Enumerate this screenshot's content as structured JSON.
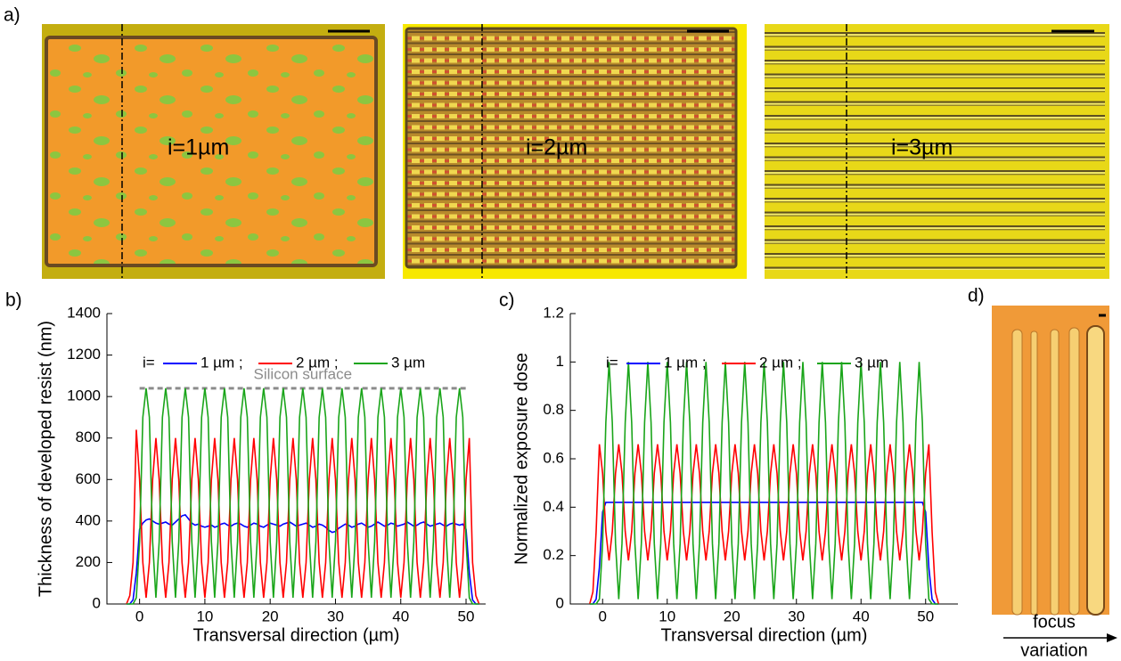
{
  "panel_labels": [
    "a)",
    "b)",
    "c)",
    "d)"
  ],
  "images": [
    {
      "label": "i=1µm"
    },
    {
      "label": "i=2µm"
    },
    {
      "label": "i=3µm"
    }
  ],
  "focus_label": [
    "focus",
    "variation"
  ],
  "chart_data": [
    {
      "type": "line",
      "xlabel": "Transversal direction (µm)",
      "ylabel": "Thickness of developed resist (nm)",
      "legend_title": "i=",
      "xlim": [
        -5,
        53
      ],
      "ylim": [
        0,
        1400
      ],
      "xticks": [
        0,
        10,
        20,
        30,
        40,
        50
      ],
      "yticks": [
        0,
        200,
        400,
        600,
        800,
        1000,
        1200,
        1400
      ],
      "annotation": {
        "text": "Silicon surface",
        "y": 1040,
        "x": [
          0,
          50
        ],
        "color": "#8c8c8c"
      },
      "x": [
        -2,
        -1.5,
        -1,
        -0.5,
        0,
        0.5,
        1,
        1.5,
        2,
        2.5,
        3,
        3.5,
        4,
        4.5,
        5,
        5.5,
        6,
        6.5,
        7,
        7.5,
        8,
        8.5,
        9,
        9.5,
        10,
        10.5,
        11,
        11.5,
        12,
        12.5,
        13,
        13.5,
        14,
        14.5,
        15,
        15.5,
        16,
        16.5,
        17,
        17.5,
        18,
        18.5,
        19,
        19.5,
        20,
        20.5,
        21,
        21.5,
        22,
        22.5,
        23,
        23.5,
        24,
        24.5,
        25,
        25.5,
        26,
        26.5,
        27,
        27.5,
        28,
        28.5,
        29,
        29.5,
        30,
        30.5,
        31,
        31.5,
        32,
        32.5,
        33,
        33.5,
        34,
        34.5,
        35,
        35.5,
        36,
        36.5,
        37,
        37.5,
        38,
        38.5,
        39,
        39.5,
        40,
        40.5,
        41,
        41.5,
        42,
        42.5,
        43,
        43.5,
        44,
        44.5,
        45,
        45.5,
        46,
        46.5,
        47,
        47.5,
        48,
        48.5,
        49,
        49.5,
        50,
        50.5,
        51,
        51.5,
        52
      ],
      "series": [
        {
          "name": "1 µm ;",
          "color": "#0000ff",
          "values": [
            0,
            0,
            20,
            150,
            360,
            390,
            405,
            410,
            400,
            390,
            385,
            390,
            395,
            385,
            380,
            395,
            410,
            425,
            430,
            410,
            390,
            380,
            385,
            375,
            370,
            375,
            380,
            370,
            375,
            385,
            390,
            380,
            375,
            385,
            390,
            385,
            375,
            370,
            380,
            390,
            385,
            375,
            370,
            380,
            390,
            385,
            380,
            375,
            385,
            390,
            395,
            385,
            375,
            380,
            385,
            390,
            380,
            370,
            375,
            385,
            380,
            370,
            355,
            345,
            350,
            365,
            375,
            385,
            380,
            370,
            375,
            385,
            390,
            380,
            370,
            375,
            385,
            395,
            385,
            375,
            380,
            390,
            385,
            375,
            380,
            385,
            395,
            385,
            375,
            380,
            390,
            395,
            385,
            375,
            380,
            385,
            390,
            380,
            375,
            385,
            390,
            385,
            380,
            385,
            360,
            150,
            20,
            0,
            0
          ]
        },
        {
          "name": "2 µm ;",
          "color": "#ff0000",
          "values": [
            0,
            40,
            200,
            840,
            600,
            200,
            30,
            200,
            600,
            800,
            600,
            200,
            30,
            200,
            600,
            800,
            600,
            200,
            30,
            200,
            600,
            800,
            600,
            200,
            30,
            200,
            600,
            800,
            600,
            200,
            30,
            200,
            600,
            800,
            600,
            200,
            30,
            200,
            600,
            800,
            600,
            200,
            30,
            200,
            600,
            800,
            600,
            200,
            30,
            200,
            600,
            800,
            600,
            200,
            30,
            200,
            600,
            800,
            600,
            200,
            30,
            200,
            600,
            800,
            600,
            200,
            30,
            200,
            600,
            800,
            600,
            200,
            30,
            200,
            600,
            800,
            600,
            200,
            30,
            200,
            600,
            800,
            600,
            200,
            30,
            200,
            600,
            800,
            600,
            200,
            30,
            200,
            600,
            800,
            600,
            200,
            30,
            200,
            600,
            800,
            600,
            200,
            30,
            200,
            600,
            800,
            200,
            40,
            0
          ]
        },
        {
          "name": "3 µm",
          "color": "#1aa51a",
          "values": [
            0,
            0,
            0,
            30,
            300,
            900,
            1040,
            900,
            300,
            30,
            300,
            900,
            1040,
            900,
            300,
            30,
            300,
            900,
            1040,
            900,
            300,
            30,
            300,
            900,
            1040,
            900,
            300,
            30,
            300,
            900,
            1040,
            900,
            300,
            30,
            300,
            900,
            1040,
            900,
            300,
            30,
            300,
            900,
            1040,
            900,
            300,
            30,
            300,
            900,
            1040,
            900,
            300,
            30,
            300,
            900,
            1040,
            900,
            300,
            30,
            300,
            900,
            1040,
            900,
            300,
            30,
            300,
            900,
            1040,
            900,
            300,
            30,
            300,
            900,
            1040,
            900,
            300,
            30,
            300,
            900,
            1040,
            900,
            300,
            30,
            300,
            900,
            1040,
            900,
            300,
            30,
            300,
            900,
            1040,
            900,
            300,
            30,
            300,
            900,
            1040,
            900,
            300,
            30,
            300,
            900,
            1040,
            900,
            300,
            30,
            0,
            0,
            0
          ]
        }
      ]
    },
    {
      "type": "line",
      "xlabel": "Transversal direction (µm)",
      "ylabel": "Normalized exposure dose",
      "legend_title": "i=",
      "xlim": [
        -5,
        55
      ],
      "ylim": [
        0,
        1.2
      ],
      "xticks": [
        0,
        10,
        20,
        30,
        40,
        50
      ],
      "yticks": [
        0,
        0.2,
        0.4,
        0.6,
        0.8,
        1,
        1.2
      ],
      "x": [
        -2,
        -1.5,
        -1,
        -0.5,
        0,
        0.5,
        1,
        1.5,
        2,
        2.5,
        3,
        3.5,
        4,
        4.5,
        5,
        5.5,
        6,
        6.5,
        7,
        7.5,
        8,
        8.5,
        9,
        9.5,
        10,
        10.5,
        11,
        11.5,
        12,
        12.5,
        13,
        13.5,
        14,
        14.5,
        15,
        15.5,
        16,
        16.5,
        17,
        17.5,
        18,
        18.5,
        19,
        19.5,
        20,
        20.5,
        21,
        21.5,
        22,
        22.5,
        23,
        23.5,
        24,
        24.5,
        25,
        25.5,
        26,
        26.5,
        27,
        27.5,
        28,
        28.5,
        29,
        29.5,
        30,
        30.5,
        31,
        31.5,
        32,
        32.5,
        33,
        33.5,
        34,
        34.5,
        35,
        35.5,
        36,
        36.5,
        37,
        37.5,
        38,
        38.5,
        39,
        39.5,
        40,
        40.5,
        41,
        41.5,
        42,
        42.5,
        43,
        43.5,
        44,
        44.5,
        45,
        45.5,
        46,
        46.5,
        47,
        47.5,
        48,
        48.5,
        49,
        49.5,
        50,
        50.5,
        51,
        51.5,
        52
      ],
      "series": [
        {
          "name": "1 µm ;",
          "color": "#0000ff",
          "values": [
            0,
            0,
            0.02,
            0.15,
            0.38,
            0.42,
            0.42,
            0.42,
            0.42,
            0.42,
            0.42,
            0.42,
            0.42,
            0.42,
            0.42,
            0.42,
            0.42,
            0.42,
            0.42,
            0.42,
            0.42,
            0.42,
            0.42,
            0.42,
            0.42,
            0.42,
            0.42,
            0.42,
            0.42,
            0.42,
            0.42,
            0.42,
            0.42,
            0.42,
            0.42,
            0.42,
            0.42,
            0.42,
            0.42,
            0.42,
            0.42,
            0.42,
            0.42,
            0.42,
            0.42,
            0.42,
            0.42,
            0.42,
            0.42,
            0.42,
            0.42,
            0.42,
            0.42,
            0.42,
            0.42,
            0.42,
            0.42,
            0.42,
            0.42,
            0.42,
            0.42,
            0.42,
            0.42,
            0.42,
            0.42,
            0.42,
            0.42,
            0.42,
            0.42,
            0.42,
            0.42,
            0.42,
            0.42,
            0.42,
            0.42,
            0.42,
            0.42,
            0.42,
            0.42,
            0.42,
            0.42,
            0.42,
            0.42,
            0.42,
            0.42,
            0.42,
            0.42,
            0.42,
            0.42,
            0.42,
            0.42,
            0.42,
            0.42,
            0.42,
            0.42,
            0.42,
            0.42,
            0.42,
            0.42,
            0.42,
            0.42,
            0.42,
            0.42,
            0.42,
            0.38,
            0.15,
            0.02,
            0,
            0
          ]
        },
        {
          "name": "2 µm ;",
          "color": "#ff0000",
          "values": [
            0,
            0.05,
            0.3,
            0.66,
            0.54,
            0.3,
            0.18,
            0.3,
            0.54,
            0.66,
            0.54,
            0.3,
            0.18,
            0.3,
            0.54,
            0.66,
            0.54,
            0.3,
            0.18,
            0.3,
            0.54,
            0.66,
            0.54,
            0.3,
            0.18,
            0.3,
            0.54,
            0.66,
            0.54,
            0.3,
            0.18,
            0.3,
            0.54,
            0.66,
            0.54,
            0.3,
            0.18,
            0.3,
            0.54,
            0.66,
            0.54,
            0.3,
            0.18,
            0.3,
            0.54,
            0.66,
            0.54,
            0.3,
            0.18,
            0.3,
            0.54,
            0.66,
            0.54,
            0.3,
            0.18,
            0.3,
            0.54,
            0.66,
            0.54,
            0.3,
            0.18,
            0.3,
            0.54,
            0.66,
            0.54,
            0.3,
            0.18,
            0.3,
            0.54,
            0.66,
            0.54,
            0.3,
            0.18,
            0.3,
            0.54,
            0.66,
            0.54,
            0.3,
            0.18,
            0.3,
            0.54,
            0.66,
            0.54,
            0.3,
            0.18,
            0.3,
            0.54,
            0.66,
            0.54,
            0.3,
            0.18,
            0.3,
            0.54,
            0.66,
            0.54,
            0.3,
            0.18,
            0.3,
            0.54,
            0.66,
            0.54,
            0.3,
            0.18,
            0.3,
            0.54,
            0.66,
            0.3,
            0.05,
            0
          ]
        },
        {
          "name": "3 µm",
          "color": "#1aa51a",
          "values": [
            0,
            0,
            0,
            0.02,
            0.25,
            0.75,
            1,
            0.75,
            0.25,
            0.02,
            0.25,
            0.75,
            1,
            0.75,
            0.25,
            0.02,
            0.25,
            0.75,
            1,
            0.75,
            0.25,
            0.02,
            0.25,
            0.75,
            1,
            0.75,
            0.25,
            0.02,
            0.25,
            0.75,
            1,
            0.75,
            0.25,
            0.02,
            0.25,
            0.75,
            1,
            0.75,
            0.25,
            0.02,
            0.25,
            0.75,
            1,
            0.75,
            0.25,
            0.02,
            0.25,
            0.75,
            1,
            0.75,
            0.25,
            0.02,
            0.25,
            0.75,
            1,
            0.75,
            0.25,
            0.02,
            0.25,
            0.75,
            1,
            0.75,
            0.25,
            0.02,
            0.25,
            0.75,
            1,
            0.75,
            0.25,
            0.02,
            0.25,
            0.75,
            1,
            0.75,
            0.25,
            0.02,
            0.25,
            0.75,
            1,
            0.75,
            0.25,
            0.02,
            0.25,
            0.75,
            1,
            0.75,
            0.25,
            0.02,
            0.25,
            0.75,
            1,
            0.75,
            0.25,
            0.02,
            0.25,
            0.75,
            1,
            0.75,
            0.25,
            0.02,
            0.25,
            0.75,
            1,
            0.75,
            0.25,
            0.02,
            0,
            0,
            0
          ]
        }
      ]
    }
  ]
}
